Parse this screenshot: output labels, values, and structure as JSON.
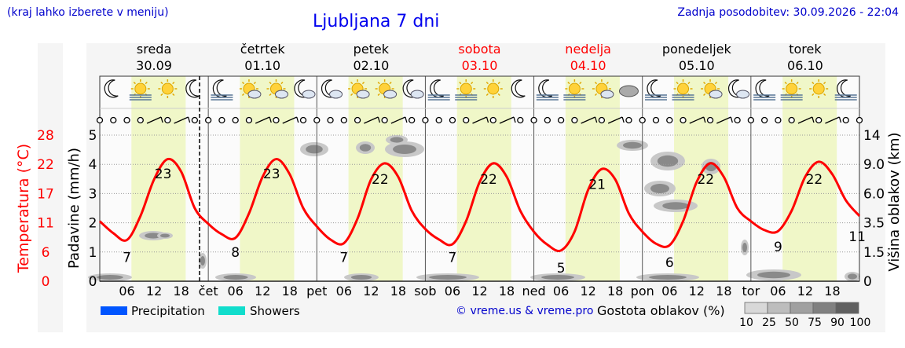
{
  "header": {
    "note": "(kraj lahko izberete v meniju)",
    "title": "Ljubljana 7 dni",
    "updated": "Zadnja posodobitev: 30.09.2026 - 22:04"
  },
  "footer": {
    "legend_precipitation": "Precipitation",
    "legend_showers": "Showers",
    "copyright": "© vreme.us & vreme.pro",
    "cloud_density_label": "Gostota oblakov (%)",
    "cloud_density_steps": [
      "10",
      "25",
      "50",
      "75",
      "90",
      "100"
    ]
  },
  "colors": {
    "temperature": "#ff0000",
    "precipitation": "#0055ff",
    "showers": "#11ddcc",
    "day_band": "#f0f7c8",
    "weekend_day": "#ff0000",
    "link_blue": "#0000cc"
  },
  "days": [
    {
      "name": "sreda",
      "date": "30.09",
      "weekend": false,
      "axis_label": "",
      "icons": [
        "moon-icon",
        "sun-fog-icon",
        "sun-icon",
        "moon-icon"
      ]
    },
    {
      "name": "četrtek",
      "date": "01.10",
      "weekend": false,
      "axis_label": "čet",
      "icons": [
        "moon-fog-icon",
        "sun-cloud-icon",
        "sun-cloud-icon",
        "moon-cloud-icon"
      ]
    },
    {
      "name": "petek",
      "date": "02.10",
      "weekend": false,
      "axis_label": "pet",
      "icons": [
        "moon-cloud-icon",
        "sun-cloud-icon",
        "sun-cloud-icon",
        "moon-cloud-icon"
      ]
    },
    {
      "name": "sobota",
      "date": "03.10",
      "weekend": true,
      "axis_label": "sob",
      "icons": [
        "moon-fog-icon",
        "sun-fog-icon",
        "sun-icon",
        "moon-icon"
      ]
    },
    {
      "name": "nedelja",
      "date": "04.10",
      "weekend": true,
      "axis_label": "ned",
      "icons": [
        "moon-fog-icon",
        "sun-fog-icon",
        "sun-cloud-icon",
        "cloud-icon"
      ]
    },
    {
      "name": "ponedeljek",
      "date": "05.10",
      "weekend": false,
      "axis_label": "pon",
      "icons": [
        "moon-fog-icon",
        "sun-fog-icon",
        "sun-cloud-icon",
        "moon-cloud-icon"
      ]
    },
    {
      "name": "torek",
      "date": "06.10",
      "weekend": false,
      "axis_label": "tor",
      "icons": [
        "moon-fog-icon",
        "sun-fog-icon",
        "sun-icon",
        "moon-fog-icon"
      ]
    }
  ],
  "chart_data": {
    "type": "line",
    "title": "Ljubljana 7 dni",
    "ylabel_left": "Temperatura (°C)",
    "ylabel_precip": "Padavine (mm/h)",
    "ylabel_right": "Višina oblakov (km)",
    "temperature_ticks": [
      "0",
      "6",
      "11",
      "17",
      "22",
      "28"
    ],
    "precip_ticks": [
      "0",
      "1",
      "2",
      "3",
      "4",
      "5"
    ],
    "cloud_height_ticks": [
      "0",
      "1.5",
      "3.5",
      "6.0",
      "9.0",
      "14"
    ],
    "hour_ticks": [
      "06",
      "12",
      "18"
    ],
    "temperature_range": [
      0,
      28
    ],
    "temperature_labels": [
      {
        "hour": 6,
        "value": "7"
      },
      {
        "hour": 14,
        "value": "23"
      },
      {
        "hour": 30,
        "value": "8"
      },
      {
        "hour": 38,
        "value": "23"
      },
      {
        "hour": 54,
        "value": "7"
      },
      {
        "hour": 62,
        "value": "22"
      },
      {
        "hour": 78,
        "value": "7"
      },
      {
        "hour": 86,
        "value": "22"
      },
      {
        "hour": 102,
        "value": "5"
      },
      {
        "hour": 110,
        "value": "21"
      },
      {
        "hour": 126,
        "value": "6"
      },
      {
        "hour": 134,
        "value": "22"
      },
      {
        "hour": 150,
        "value": "9"
      },
      {
        "hour": 158,
        "value": "22"
      },
      {
        "hour": 167.5,
        "value": "11"
      }
    ],
    "series": [
      {
        "name": "Temperatura",
        "hours": [
          0,
          3,
          6,
          9,
          12,
          15,
          18,
          21,
          24,
          27,
          30,
          33,
          36,
          39,
          42,
          45,
          48,
          51,
          54,
          57,
          60,
          63,
          66,
          69,
          72,
          75,
          78,
          81,
          84,
          87,
          90,
          93,
          96,
          99,
          102,
          105,
          108,
          111,
          114,
          117,
          120,
          123,
          126,
          129,
          132,
          135,
          138,
          141,
          144,
          147,
          150,
          153,
          156,
          159,
          162,
          165,
          168
        ],
        "values": [
          11.5,
          9.2,
          7.9,
          12.5,
          19.5,
          23.4,
          21.0,
          14.0,
          11.0,
          9.0,
          8.3,
          13.0,
          20.0,
          23.4,
          20.5,
          14.0,
          10.5,
          8.0,
          7.3,
          12.0,
          19.5,
          22.6,
          20.0,
          13.5,
          10.0,
          8.0,
          7.1,
          11.5,
          19.0,
          22.6,
          20.0,
          13.5,
          9.5,
          7.0,
          5.9,
          9.5,
          17.5,
          21.5,
          19.5,
          13.0,
          9.5,
          7.2,
          6.9,
          11.5,
          19.0,
          22.6,
          20.0,
          14.0,
          11.5,
          9.8,
          9.6,
          13.5,
          20.0,
          22.9,
          20.5,
          15.5,
          12.5
        ]
      }
    ]
  }
}
